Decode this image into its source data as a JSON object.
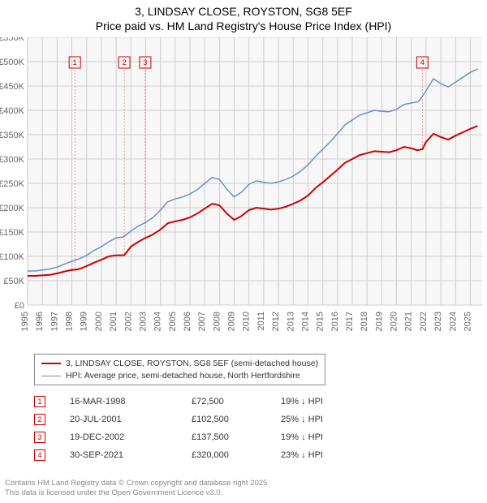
{
  "title": {
    "line1": "3, LINDSAY CLOSE, ROYSTON, SG8 5EF",
    "line2": "Price paid vs. HM Land Registry's House Price Index (HPI)"
  },
  "chart": {
    "type": "line",
    "background_color": "#f7f7f7",
    "grid_color": "#cccccc",
    "axis_label_color": "#666666",
    "axis_fontsize": 11,
    "xlim": [
      1995,
      2025.8
    ],
    "ylim": [
      0,
      550000
    ],
    "ytick_step": 50000,
    "ytick_labels": [
      "£0",
      "£50K",
      "£100K",
      "£150K",
      "£200K",
      "£250K",
      "£300K",
      "£350K",
      "£400K",
      "£450K",
      "£500K",
      "£550K"
    ],
    "xtick_step": 1,
    "xtick_labels": [
      "1995",
      "1996",
      "1997",
      "1998",
      "1999",
      "2000",
      "2001",
      "2002",
      "2003",
      "2004",
      "2005",
      "2006",
      "2007",
      "2008",
      "2009",
      "2010",
      "2011",
      "2012",
      "2013",
      "2014",
      "2015",
      "2016",
      "2017",
      "2018",
      "2019",
      "2020",
      "2021",
      "2022",
      "2023",
      "2024",
      "2025"
    ],
    "series": {
      "price_paid": {
        "label": "3, LINDSAY CLOSE, ROYSTON, SG8 5EF (semi-detached house)",
        "color": "#cc0000",
        "line_width": 2,
        "data": [
          [
            1995,
            60000
          ],
          [
            1995.5,
            60000
          ],
          [
            1996,
            61000
          ],
          [
            1996.5,
            62000
          ],
          [
            1997,
            65000
          ],
          [
            1997.5,
            69000
          ],
          [
            1998,
            72000
          ],
          [
            1998.2,
            72500
          ],
          [
            1998.5,
            74000
          ],
          [
            1999,
            80000
          ],
          [
            1999.5,
            87000
          ],
          [
            2000,
            93000
          ],
          [
            2000.5,
            100000
          ],
          [
            2001,
            102000
          ],
          [
            2001.55,
            102500
          ],
          [
            2002,
            120000
          ],
          [
            2002.5,
            130000
          ],
          [
            2002.97,
            137500
          ],
          [
            2003,
            138000
          ],
          [
            2003.5,
            145000
          ],
          [
            2004,
            155000
          ],
          [
            2004.5,
            168000
          ],
          [
            2005,
            172000
          ],
          [
            2005.5,
            175000
          ],
          [
            2006,
            180000
          ],
          [
            2006.5,
            188000
          ],
          [
            2007,
            198000
          ],
          [
            2007.5,
            208000
          ],
          [
            2008,
            205000
          ],
          [
            2008.5,
            188000
          ],
          [
            2009,
            175000
          ],
          [
            2009.5,
            183000
          ],
          [
            2010,
            195000
          ],
          [
            2010.5,
            200000
          ],
          [
            2011,
            198000
          ],
          [
            2011.5,
            196000
          ],
          [
            2012,
            198000
          ],
          [
            2012.5,
            202000
          ],
          [
            2013,
            208000
          ],
          [
            2013.5,
            215000
          ],
          [
            2014,
            225000
          ],
          [
            2014.5,
            240000
          ],
          [
            2015,
            252000
          ],
          [
            2015.5,
            265000
          ],
          [
            2016,
            278000
          ],
          [
            2016.5,
            292000
          ],
          [
            2017,
            300000
          ],
          [
            2017.5,
            308000
          ],
          [
            2018,
            312000
          ],
          [
            2018.5,
            316000
          ],
          [
            2019,
            315000
          ],
          [
            2019.5,
            314000
          ],
          [
            2020,
            318000
          ],
          [
            2020.5,
            325000
          ],
          [
            2021,
            322000
          ],
          [
            2021.4,
            318000
          ],
          [
            2021.75,
            320000
          ],
          [
            2022,
            335000
          ],
          [
            2022.5,
            352000
          ],
          [
            2023,
            345000
          ],
          [
            2023.5,
            340000
          ],
          [
            2024,
            348000
          ],
          [
            2024.5,
            355000
          ],
          [
            2025,
            362000
          ],
          [
            2025.5,
            368000
          ]
        ]
      },
      "hpi": {
        "label": "HPI: Average price, semi-detached house, North Hertfordshire",
        "color": "#6b8fc7",
        "line_width": 1.5,
        "data": [
          [
            1995,
            70000
          ],
          [
            1995.5,
            70000
          ],
          [
            1996,
            72000
          ],
          [
            1996.5,
            74000
          ],
          [
            1997,
            78000
          ],
          [
            1997.5,
            84000
          ],
          [
            1998,
            90000
          ],
          [
            1998.5,
            95000
          ],
          [
            1999,
            102000
          ],
          [
            1999.5,
            112000
          ],
          [
            2000,
            120000
          ],
          [
            2000.5,
            130000
          ],
          [
            2001,
            138000
          ],
          [
            2001.5,
            140000
          ],
          [
            2002,
            152000
          ],
          [
            2002.5,
            162000
          ],
          [
            2003,
            170000
          ],
          [
            2003.5,
            180000
          ],
          [
            2004,
            195000
          ],
          [
            2004.5,
            212000
          ],
          [
            2005,
            218000
          ],
          [
            2005.5,
            222000
          ],
          [
            2006,
            228000
          ],
          [
            2006.5,
            237000
          ],
          [
            2007,
            250000
          ],
          [
            2007.5,
            262000
          ],
          [
            2008,
            258000
          ],
          [
            2008.5,
            238000
          ],
          [
            2009,
            222000
          ],
          [
            2009.5,
            232000
          ],
          [
            2010,
            248000
          ],
          [
            2010.5,
            255000
          ],
          [
            2011,
            252000
          ],
          [
            2011.5,
            250000
          ],
          [
            2012,
            253000
          ],
          [
            2012.5,
            258000
          ],
          [
            2013,
            265000
          ],
          [
            2013.5,
            275000
          ],
          [
            2014,
            288000
          ],
          [
            2014.5,
            305000
          ],
          [
            2015,
            320000
          ],
          [
            2015.5,
            335000
          ],
          [
            2016,
            352000
          ],
          [
            2016.5,
            370000
          ],
          [
            2017,
            380000
          ],
          [
            2017.5,
            390000
          ],
          [
            2018,
            395000
          ],
          [
            2018.5,
            400000
          ],
          [
            2019,
            398000
          ],
          [
            2019.5,
            397000
          ],
          [
            2020,
            402000
          ],
          [
            2020.5,
            412000
          ],
          [
            2021,
            415000
          ],
          [
            2021.5,
            418000
          ],
          [
            2022,
            440000
          ],
          [
            2022.5,
            465000
          ],
          [
            2023,
            455000
          ],
          [
            2023.5,
            448000
          ],
          [
            2024,
            458000
          ],
          [
            2024.5,
            468000
          ],
          [
            2025,
            478000
          ],
          [
            2025.5,
            485000
          ]
        ]
      }
    },
    "markers": [
      {
        "n": "1",
        "x": 1998.2,
        "box_y": 510000
      },
      {
        "n": "2",
        "x": 2001.55,
        "box_y": 510000
      },
      {
        "n": "3",
        "x": 2002.97,
        "box_y": 510000
      },
      {
        "n": "4",
        "x": 2021.75,
        "box_y": 510000
      }
    ]
  },
  "legend": {
    "items": [
      {
        "color": "#cc0000",
        "width": 2,
        "label_key": "chart.series.price_paid.label"
      },
      {
        "color": "#6b8fc7",
        "width": 1.5,
        "label_key": "chart.series.hpi.label"
      }
    ]
  },
  "events": [
    {
      "n": "1",
      "date": "16-MAR-1998",
      "price": "£72,500",
      "delta": "19% ↓ HPI"
    },
    {
      "n": "2",
      "date": "20-JUL-2001",
      "price": "£102,500",
      "delta": "25% ↓ HPI"
    },
    {
      "n": "3",
      "date": "19-DEC-2002",
      "price": "£137,500",
      "delta": "19% ↓ HPI"
    },
    {
      "n": "4",
      "date": "30-SEP-2021",
      "price": "£320,000",
      "delta": "23% ↓ HPI"
    }
  ],
  "footer": {
    "line1": "Contains HM Land Registry data © Crown copyright and database right 2025.",
    "line2": "This data is licensed under the Open Government Licence v3.0."
  }
}
